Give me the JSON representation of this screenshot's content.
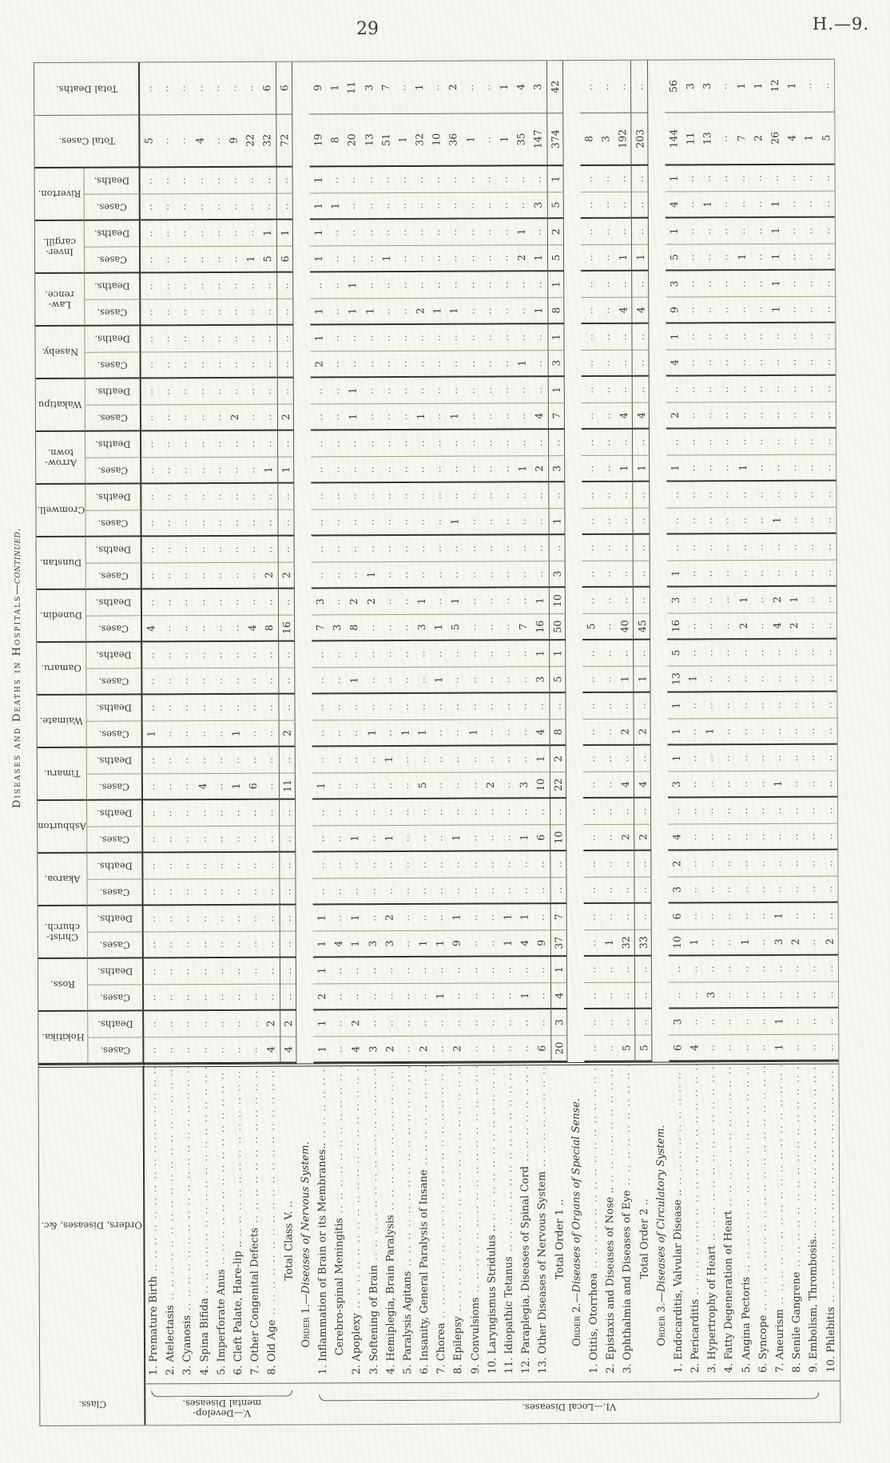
{
  "page": {
    "number": "29",
    "doc_ref": "H.—9.",
    "side_title_main": "Diseases and Deaths in Hospitals",
    "side_title_cont": "—continued."
  },
  "table": {
    "headers": {
      "class_label": "Class.",
      "orders_label": "Orders, Diseases, &c.",
      "cases_label": "Cases.",
      "deaths_label": "Deaths.",
      "total_cases_label": "Total Cases.",
      "total_deaths_label": "Total Deaths."
    },
    "hospitals": [
      "Hokitika.",
      "Ross.",
      "Christ-\nchurch.",
      "Akaroa.",
      "Ashburton",
      "Timaru.",
      "Waimate.",
      "Oamaru.",
      "Dunedin.",
      "Dunstan.",
      "Cromwell.",
      "Arrow-\ntown.",
      "Wakatipu",
      "Naseby.",
      "Law-\nrence.",
      "Inver-\ncargill.",
      "Riverton."
    ],
    "class_groups": [
      {
        "label": "V.—Develop-\nmental Diseases.",
        "from": 0,
        "to": 8
      },
      {
        "label": "VI.—Local Diseases.",
        "from": 9,
        "to": 40
      }
    ],
    "rows": [
      {
        "t": "d",
        "label": "1. Premature Birth",
        "tc": "5",
        "td": "",
        "cells": {
          "6": [
            "1",
            ""
          ],
          "8": [
            "4",
            ""
          ]
        }
      },
      {
        "t": "d",
        "label": "2. Atelectasis",
        "tc": "",
        "td": "",
        "cells": {}
      },
      {
        "t": "d",
        "label": "3. Cyanosis",
        "tc": "",
        "td": "",
        "cells": {}
      },
      {
        "t": "d",
        "label": "4. Spina Bifida",
        "tc": "4",
        "td": "",
        "cells": {
          "5": [
            "4",
            ""
          ]
        }
      },
      {
        "t": "d",
        "label": "5. Imperforate Anus",
        "tc": "",
        "td": "",
        "cells": {}
      },
      {
        "t": "d",
        "label": "6. Cleft Palate, Hare-lip ..",
        "tc": "9",
        "td": "",
        "cells": {
          "5": [
            "1",
            ""
          ],
          "6": [
            "1",
            ""
          ],
          "12": [
            "2",
            ""
          ]
        }
      },
      {
        "t": "d",
        "label": "7. Other Congenital Defects",
        "tc": "22",
        "td": "",
        "cells": {
          "5": [
            "6",
            ""
          ],
          "8": [
            "4",
            ""
          ],
          "15": [
            "1",
            ""
          ]
        }
      },
      {
        "t": "d",
        "label": "8. Old Age",
        "tc": "32",
        "td": "6",
        "cells": {
          "0": [
            "4",
            "2"
          ],
          "8": [
            "8",
            ""
          ],
          "9": [
            "2",
            ""
          ],
          "11": [
            "1",
            ""
          ],
          "15": [
            "5",
            "1"
          ]
        }
      },
      {
        "t": "t",
        "label": "Total Class V. ..",
        "tc": "72",
        "td": "6",
        "cells": {
          "0": [
            "4",
            "2"
          ],
          "5": [
            "11",
            ""
          ],
          "6": [
            "2",
            ""
          ],
          "8": [
            "16",
            ""
          ],
          "9": [
            "2",
            ""
          ],
          "11": [
            "1",
            ""
          ],
          "12": [
            "2",
            ""
          ],
          "15": [
            "6",
            "1"
          ]
        }
      },
      {
        "t": "h",
        "label": "Order 1.—Diseases of Nervous System.",
        "order_prefix": "Order 1."
      },
      {
        "t": "d",
        "label": "1. Inflammation of Brain or its Membranes..",
        "tc": "19",
        "td": "9",
        "cells": {
          "0": [
            "1",
            "1"
          ],
          "1": [
            "2",
            "1"
          ],
          "2": [
            "1",
            "1"
          ],
          "5": [
            "1",
            ""
          ],
          "8": [
            "7",
            "3"
          ],
          "13": [
            "2",
            "1"
          ],
          "14": [
            "1",
            ""
          ],
          "15": [
            "1",
            "1"
          ],
          "16": [
            "1",
            "1"
          ]
        }
      },
      {
        "t": "s",
        "label": "Cerebro-spinal Meningitis",
        "tc": "8",
        "td": "1",
        "cells": {
          "2": [
            "4",
            ""
          ],
          "8": [
            "3",
            ""
          ],
          "16": [
            "1",
            ""
          ]
        }
      },
      {
        "t": "d",
        "label": "2. Apoplexy",
        "tc": "20",
        "td": "11",
        "cells": {
          "0": [
            "4",
            "2"
          ],
          "2": [
            "1",
            "1"
          ],
          "4": [
            "1",
            ""
          ],
          "7": [
            "1",
            ""
          ],
          "8": [
            "8",
            "2"
          ],
          "12": [
            "1",
            "1"
          ],
          "14": [
            "1",
            "1"
          ]
        }
      },
      {
        "t": "d",
        "label": "3. Softening of Brain",
        "tc": "13",
        "td": "3",
        "cells": {
          "0": [
            "3",
            ""
          ],
          "2": [
            "3",
            ""
          ],
          "6": [
            "1",
            ""
          ],
          "8": [
            "",
            "2"
          ],
          "9": [
            "1",
            ""
          ],
          "14": [
            "1",
            ""
          ]
        }
      },
      {
        "t": "d",
        "label": "4. Hemiplegia, Brain Paralysis",
        "tc": "51",
        "td": "7",
        "cells": {
          "0": [
            "2",
            ""
          ],
          "2": [
            "3",
            "2"
          ],
          "4": [
            "1",
            ""
          ],
          "5": [
            "",
            "1"
          ],
          "15": [
            "1",
            ""
          ]
        }
      },
      {
        "t": "d",
        "label": "5. Paralysis Agitans",
        "tc": "1",
        "td": "",
        "cells": {
          "6": [
            "1",
            ""
          ]
        }
      },
      {
        "t": "d",
        "label": "6. Insanity, General Paralysis of Insane",
        "tc": "32",
        "td": "1",
        "cells": {
          "0": [
            "2",
            ""
          ],
          "2": [
            "1",
            ""
          ],
          "5": [
            "5",
            ""
          ],
          "6": [
            "1",
            ""
          ],
          "8": [
            "3",
            "1"
          ],
          "12": [
            "1",
            ""
          ],
          "14": [
            "2",
            ""
          ]
        }
      },
      {
        "t": "d",
        "label": "7. Chorea",
        "tc": "10",
        "td": "",
        "cells": {
          "1": [
            "1",
            ""
          ],
          "2": [
            "1",
            ""
          ],
          "7": [
            "1",
            ""
          ],
          "8": [
            "1",
            ""
          ],
          "14": [
            "1",
            ""
          ]
        }
      },
      {
        "t": "d",
        "label": "8. Epilepsy",
        "tc": "36",
        "td": "2",
        "cells": {
          "0": [
            "2",
            ""
          ],
          "2": [
            "9",
            "1"
          ],
          "4": [
            "1",
            ""
          ],
          "8": [
            "5",
            "1"
          ],
          "10": [
            "1",
            ""
          ],
          "12": [
            "1",
            ""
          ],
          "14": [
            "1",
            ""
          ]
        }
      },
      {
        "t": "d",
        "label": "9. Convulsions",
        "tc": "1",
        "td": "",
        "cells": {
          "6": [
            "1",
            ""
          ]
        }
      },
      {
        "t": "d",
        "label": "10. Laryngismus Stridulus ..",
        "tc": "",
        "td": "",
        "cells": {
          "5": [
            "2",
            ""
          ]
        }
      },
      {
        "t": "d",
        "label": "11. Idiopathic Tetanus",
        "tc": "1",
        "td": "1",
        "cells": {
          "2": [
            "1",
            "1"
          ]
        }
      },
      {
        "t": "d",
        "label": "12. Paraplegia, Diseases of Spinal Cord",
        "tc": "35",
        "td": "4",
        "cells": {
          "1": [
            "1",
            ""
          ],
          "2": [
            "4",
            "1"
          ],
          "4": [
            "1",
            ""
          ],
          "5": [
            "3",
            ""
          ],
          "8": [
            "7",
            ""
          ],
          "11": [
            "1",
            ""
          ],
          "13": [
            "1",
            ""
          ],
          "15": [
            "2",
            "1"
          ]
        }
      },
      {
        "t": "d",
        "label": "13. Other Diseases of Nervous System",
        "tc": "147",
        "td": "3",
        "cells": {
          "0": [
            "6",
            ""
          ],
          "2": [
            "9",
            ""
          ],
          "4": [
            "6",
            ""
          ],
          "5": [
            "10",
            "1"
          ],
          "6": [
            "4",
            ""
          ],
          "7": [
            "3",
            "1"
          ],
          "8": [
            "16",
            "1"
          ],
          "11": [
            "2",
            ""
          ],
          "12": [
            "4",
            ""
          ],
          "14": [
            "1",
            ""
          ],
          "15": [
            "1",
            ""
          ],
          "16": [
            "3",
            ""
          ]
        }
      },
      {
        "t": "t",
        "label": "Total Order 1 ..",
        "tc": "374",
        "td": "42",
        "cells": {
          "0": [
            "20",
            "3"
          ],
          "1": [
            "4",
            "1"
          ],
          "2": [
            "37",
            "7"
          ],
          "4": [
            "10",
            ""
          ],
          "5": [
            "22",
            "2"
          ],
          "6": [
            "8",
            ""
          ],
          "7": [
            "5",
            "1"
          ],
          "8": [
            "50",
            "10"
          ],
          "9": [
            "3",
            ""
          ],
          "10": [
            "1",
            ""
          ],
          "11": [
            "3",
            ""
          ],
          "12": [
            "7",
            "1"
          ],
          "13": [
            "3",
            "1"
          ],
          "14": [
            "8",
            "1"
          ],
          "15": [
            "5",
            "2"
          ],
          "16": [
            "5",
            "1"
          ]
        }
      },
      {
        "t": "h",
        "label": "Order 2.—Diseases of Organs of Special Sense.",
        "order_prefix": "Order 2."
      },
      {
        "t": "d",
        "label": "1. Otitis, Otorrhœa",
        "tc": "8",
        "td": "",
        "cells": {
          "8": [
            "5",
            ""
          ]
        }
      },
      {
        "t": "d",
        "label": "2. Epistaxis and Diseases of Nose ..",
        "tc": "3",
        "td": "",
        "cells": {
          "2": [
            "1",
            ""
          ]
        }
      },
      {
        "t": "d",
        "label": "3. Ophthalmia and Diseases of Eye",
        "tc": "192",
        "td": "",
        "cells": {
          "0": [
            "5",
            ""
          ],
          "2": [
            "32",
            ""
          ],
          "4": [
            "2",
            ""
          ],
          "5": [
            "4",
            ""
          ],
          "6": [
            "2",
            ""
          ],
          "7": [
            "1",
            ""
          ],
          "8": [
            "40",
            ""
          ],
          "11": [
            "1",
            ""
          ],
          "12": [
            "4",
            ""
          ],
          "14": [
            "4",
            ""
          ],
          "15": [
            "1",
            ""
          ]
        }
      },
      {
        "t": "t",
        "label": "Total Order 2 ..",
        "tc": "203",
        "td": "",
        "cells": {
          "0": [
            "5",
            ""
          ],
          "2": [
            "33",
            ""
          ],
          "4": [
            "2",
            ""
          ],
          "5": [
            "4",
            ""
          ],
          "6": [
            "2",
            ""
          ],
          "7": [
            "1",
            ""
          ],
          "8": [
            "45",
            ""
          ],
          "11": [
            "1",
            ""
          ],
          "12": [
            "4",
            ""
          ],
          "14": [
            "4",
            ""
          ],
          "15": [
            "1",
            ""
          ]
        }
      },
      {
        "t": "h",
        "label": "Order 3.—Diseases of Circulatory System.",
        "order_prefix": "Order 3."
      },
      {
        "t": "d",
        "label": "1. Endocarditis, Valvular Disease ..",
        "tc": "144",
        "td": "56",
        "cells": {
          "0": [
            "6",
            "3"
          ],
          "2": [
            "10",
            "6"
          ],
          "3": [
            "3",
            "2"
          ],
          "4": [
            "4",
            ""
          ],
          "5": [
            "3",
            "1"
          ],
          "6": [
            "1",
            "1"
          ],
          "7": [
            "13",
            "5"
          ],
          "8": [
            "16",
            "3"
          ],
          "9": [
            "1",
            ""
          ],
          "11": [
            "1",
            ""
          ],
          "12": [
            "2",
            ""
          ],
          "13": [
            "4",
            "1"
          ],
          "14": [
            "9",
            "3"
          ],
          "15": [
            "5",
            "1"
          ],
          "16": [
            "4",
            "1"
          ]
        }
      },
      {
        "t": "d",
        "label": "2. Pericarditis",
        "tc": "11",
        "td": "3",
        "cells": {
          "0": [
            "4",
            ""
          ],
          "2": [
            "1",
            ""
          ],
          "7": [
            "1",
            ""
          ]
        }
      },
      {
        "t": "d",
        "label": "3. Hypertrophy of Heart",
        "tc": "13",
        "td": "3",
        "cells": {
          "1": [
            "3",
            ""
          ],
          "6": [
            "1",
            ""
          ],
          "16": [
            "1",
            ""
          ]
        }
      },
      {
        "t": "d",
        "label": "4. Fatty Degeneration of Heart",
        "tc": "",
        "td": "",
        "cells": {}
      },
      {
        "t": "d",
        "label": "5. Angina Pectoris",
        "tc": "7",
        "td": "1",
        "cells": {
          "2": [
            "1",
            ""
          ],
          "8": [
            "2",
            "1"
          ],
          "11": [
            "1",
            ""
          ],
          "15": [
            "1",
            ""
          ]
        }
      },
      {
        "t": "d",
        "label": "6. Syncope",
        "tc": "2",
        "td": "1",
        "cells": {}
      },
      {
        "t": "d",
        "label": "7. Aneurism",
        "tc": "26",
        "td": "12",
        "cells": {
          "0": [
            "1",
            "1"
          ],
          "2": [
            "3",
            "1"
          ],
          "5": [
            "1",
            ""
          ],
          "8": [
            "4",
            "2"
          ],
          "10": [
            "1",
            ""
          ],
          "14": [
            "1",
            "1"
          ],
          "15": [
            "1",
            "1"
          ],
          "16": [
            "1",
            ""
          ]
        }
      },
      {
        "t": "d",
        "label": "8. Senile Gangrene",
        "tc": "4",
        "td": "1",
        "cells": {
          "2": [
            "2",
            ""
          ],
          "8": [
            "2",
            "1"
          ]
        }
      },
      {
        "t": "d",
        "label": "9. Embolism, Thrombosis..",
        "tc": "1",
        "td": "",
        "cells": {}
      },
      {
        "t": "d",
        "label": "10. Phlebitis",
        "tc": "5",
        "td": "",
        "cells": {
          "2": [
            "2",
            ""
          ]
        }
      }
    ]
  }
}
